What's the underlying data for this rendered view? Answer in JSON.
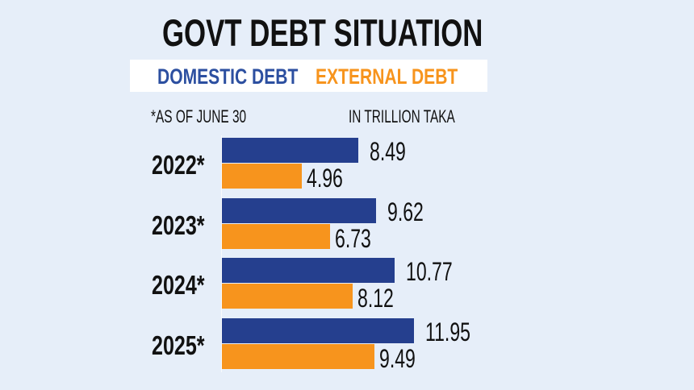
{
  "title": "GOVT DEBT SITUATION",
  "legend": {
    "domestic": {
      "label": "DOMESTIC DEBT",
      "color": "#2c4fa0"
    },
    "external": {
      "label": "EXTERNAL DEBT",
      "color": "#f7941d"
    }
  },
  "notes": {
    "date_note": "*AS OF JUNE 30",
    "unit": "IN TRILLION TAKA"
  },
  "rows": [
    {
      "year": "2022*",
      "domestic": "8.49",
      "external": "4.96"
    },
    {
      "year": "2023*",
      "domestic": "9.62",
      "external": "6.73"
    },
    {
      "year": "2024*",
      "domestic": "10.77",
      "external": "8.12"
    },
    {
      "year": "2025*",
      "domestic": "11.95",
      "external": "9.49"
    }
  ],
  "colors": {
    "background": "#e6eef9",
    "domestic_bar": "#253f8e",
    "external_bar": "#f7941d"
  },
  "chart_data": {
    "type": "bar",
    "orientation": "horizontal",
    "title": "GOVT DEBT SITUATION",
    "categories": [
      "2022*",
      "2023*",
      "2024*",
      "2025*"
    ],
    "series": [
      {
        "name": "DOMESTIC DEBT",
        "color": "#253f8e",
        "values": [
          8.49,
          9.62,
          10.77,
          11.95
        ]
      },
      {
        "name": "EXTERNAL DEBT",
        "color": "#f7941d",
        "values": [
          4.96,
          6.73,
          8.12,
          9.49
        ]
      }
    ],
    "xlabel": "IN TRILLION TAKA",
    "ylabel": "",
    "annotations": [
      "*AS OF JUNE 30"
    ],
    "legend_position": "top",
    "grid": false,
    "data_labels": true
  }
}
